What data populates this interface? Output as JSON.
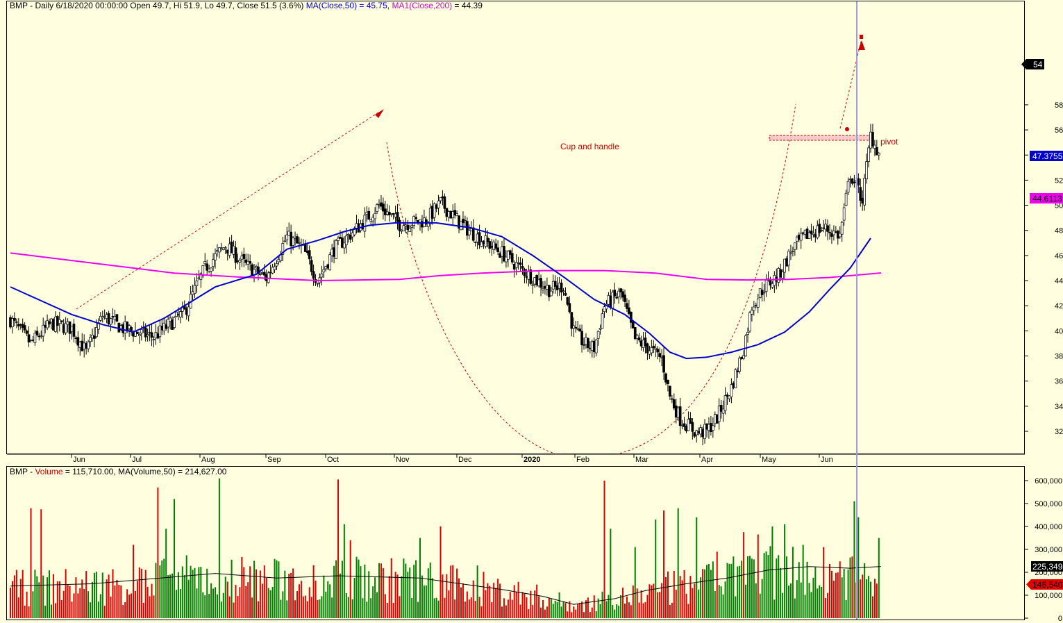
{
  "header": {
    "main_prefix": "BMP - Daily 6/18/2020 00:00:00 Open 49.7, Hi 51.9, Lo 49.7, Close 51.5 (3.6%)",
    "ma50": "MA(Close,50) = 45.75,",
    "ma200_name": "MA1(Close,200)",
    "ma200_value": "= 44.39",
    "vol_prefix": "BMP -",
    "vol_name": "Volume",
    "vol_rest": "= 115,710.00, MA(Volume,50) = 214,627.00"
  },
  "colors": {
    "background": "#ffffe0",
    "ma50": "#0000cc",
    "ma200": "#ee00ee",
    "vol_up": "#008000",
    "vol_down": "#e00000",
    "cursor": "#9999ff",
    "annotation": "#cc0000"
  },
  "chart_data": [
    {
      "type": "candlestick",
      "title": "BMP - Daily",
      "x_tick_labels": [
        "Jun",
        "Jul",
        "Aug",
        "Sep",
        "Oct",
        "Nov",
        "Dec",
        "2020",
        "Feb",
        "Mar",
        "Apr",
        "May",
        "Jun"
      ],
      "y_ticks": [
        32,
        34,
        36,
        38,
        40,
        42,
        44,
        46,
        48,
        50,
        52,
        54,
        56,
        58
      ],
      "ylim": [
        31,
        58.5
      ],
      "last_price_label": "54",
      "ma50_label": "47.3755",
      "ma200_label": "44.6113",
      "annotations": {
        "pattern": "Cup and handle",
        "pivot": "pivot"
      },
      "anchors": [
        [
          0,
          40.9
        ],
        [
          10,
          39
        ],
        [
          20,
          40.6
        ],
        [
          30,
          40.2
        ],
        [
          37,
          38.3
        ],
        [
          45,
          41.2
        ],
        [
          55,
          40.2
        ],
        [
          70,
          39.5
        ],
        [
          85,
          41.5
        ],
        [
          95,
          45
        ],
        [
          105,
          46.8
        ],
        [
          115,
          45.2
        ],
        [
          125,
          44.2
        ],
        [
          135,
          47.5
        ],
        [
          143,
          46.5
        ],
        [
          150,
          44
        ],
        [
          158,
          46.5
        ],
        [
          170,
          48.3
        ],
        [
          180,
          50
        ],
        [
          190,
          48.5
        ],
        [
          203,
          48.8
        ],
        [
          210,
          50.2
        ],
        [
          220,
          48.5
        ],
        [
          228,
          47.5
        ],
        [
          240,
          46.2
        ],
        [
          252,
          44.6
        ],
        [
          263,
          43.3
        ],
        [
          270,
          43.6
        ],
        [
          275,
          40
        ],
        [
          280,
          39
        ],
        [
          285,
          38.6
        ],
        [
          290,
          42
        ],
        [
          298,
          43
        ],
        [
          305,
          39.3
        ],
        [
          310,
          38.8
        ],
        [
          318,
          37.8
        ],
        [
          322,
          34.8
        ],
        [
          327,
          33
        ],
        [
          335,
          31.9
        ],
        [
          340,
          32
        ],
        [
          345,
          33.1
        ],
        [
          352,
          35.5
        ],
        [
          358,
          38.6
        ],
        [
          362,
          42
        ],
        [
          368,
          43.5
        ],
        [
          375,
          44.4
        ],
        [
          382,
          46.6
        ],
        [
          390,
          47.8
        ],
        [
          397,
          48.2
        ],
        [
          405,
          47.6
        ],
        [
          410,
          52.5
        ],
        [
          416,
          50.5
        ],
        [
          420,
          55.6
        ],
        [
          424,
          54.1
        ]
      ],
      "ma50_points": [
        [
          0,
          43.5
        ],
        [
          30,
          41.3
        ],
        [
          45,
          40.5
        ],
        [
          60,
          39.9
        ],
        [
          75,
          41
        ],
        [
          100,
          43.5
        ],
        [
          120,
          44.5
        ],
        [
          135,
          46.5
        ],
        [
          150,
          47.2
        ],
        [
          163,
          47.9
        ],
        [
          175,
          48.4
        ],
        [
          188,
          48.6
        ],
        [
          208,
          48.6
        ],
        [
          225,
          48.2
        ],
        [
          240,
          47.5
        ],
        [
          255,
          46
        ],
        [
          270,
          44.3
        ],
        [
          285,
          42.5
        ],
        [
          300,
          41.3
        ],
        [
          312,
          39.8
        ],
        [
          322,
          38.3
        ],
        [
          330,
          37.8
        ],
        [
          340,
          37.9
        ],
        [
          352,
          38.3
        ],
        [
          365,
          38.9
        ],
        [
          378,
          39.9
        ],
        [
          390,
          41.5
        ],
        [
          400,
          43.3
        ],
        [
          410,
          45
        ],
        [
          420,
          47.3755
        ]
      ],
      "ma200_points": [
        [
          0,
          46.2
        ],
        [
          40,
          45.4
        ],
        [
          80,
          44.6
        ],
        [
          110,
          44.3
        ],
        [
          150,
          44
        ],
        [
          190,
          44.1
        ],
        [
          210,
          44.4
        ],
        [
          230,
          44.6
        ],
        [
          260,
          44.8
        ],
        [
          290,
          44.8
        ],
        [
          315,
          44.6
        ],
        [
          340,
          44.1
        ],
        [
          360,
          44.05
        ],
        [
          380,
          44.1
        ],
        [
          400,
          44.25
        ],
        [
          425,
          44.6113
        ]
      ]
    },
    {
      "type": "bar",
      "title": "BMP - Volume",
      "y_ticks": [
        0,
        100000,
        200000,
        300000,
        400000,
        500000,
        600000
      ],
      "y_tick_labels": [
        "0",
        "100,000",
        "200,000",
        "300,000",
        "400,000",
        "500,000",
        "600,000"
      ],
      "ylim": [
        0,
        650000
      ],
      "ma_label": "225,349",
      "last_label": "146,540",
      "ma_anchors": [
        [
          0,
          140000
        ],
        [
          40,
          150000
        ],
        [
          80,
          180000
        ],
        [
          100,
          195000
        ],
        [
          130,
          175000
        ],
        [
          160,
          185000
        ],
        [
          200,
          175000
        ],
        [
          240,
          125000
        ],
        [
          260,
          95000
        ],
        [
          275,
          60000
        ],
        [
          295,
          85000
        ],
        [
          310,
          120000
        ],
        [
          330,
          150000
        ],
        [
          350,
          175000
        ],
        [
          370,
          210000
        ],
        [
          390,
          225000
        ],
        [
          410,
          218000
        ],
        [
          425,
          225349
        ]
      ],
      "spikes": [
        [
          10,
          480000
        ],
        [
          15,
          475000
        ],
        [
          60,
          320000
        ],
        [
          72,
          570000
        ],
        [
          76,
          390000
        ],
        [
          80,
          520000
        ],
        [
          102,
          610000
        ],
        [
          108,
          255000
        ],
        [
          119,
          250000
        ],
        [
          160,
          605000
        ],
        [
          163,
          410000
        ],
        [
          166,
          340000
        ],
        [
          192,
          260000
        ],
        [
          200,
          350000
        ],
        [
          210,
          400000
        ],
        [
          228,
          230000
        ],
        [
          290,
          600000
        ],
        [
          293,
          390000
        ],
        [
          305,
          310000
        ],
        [
          315,
          430000
        ],
        [
          319,
          470000
        ],
        [
          326,
          480000
        ],
        [
          335,
          440000
        ],
        [
          345,
          290000
        ],
        [
          358,
          375000
        ],
        [
          365,
          365000
        ],
        [
          372,
          400000
        ],
        [
          378,
          410000
        ],
        [
          387,
          320000
        ],
        [
          397,
          310000
        ],
        [
          412,
          510000
        ],
        [
          414,
          440000
        ],
        [
          424,
          350000
        ]
      ]
    }
  ]
}
